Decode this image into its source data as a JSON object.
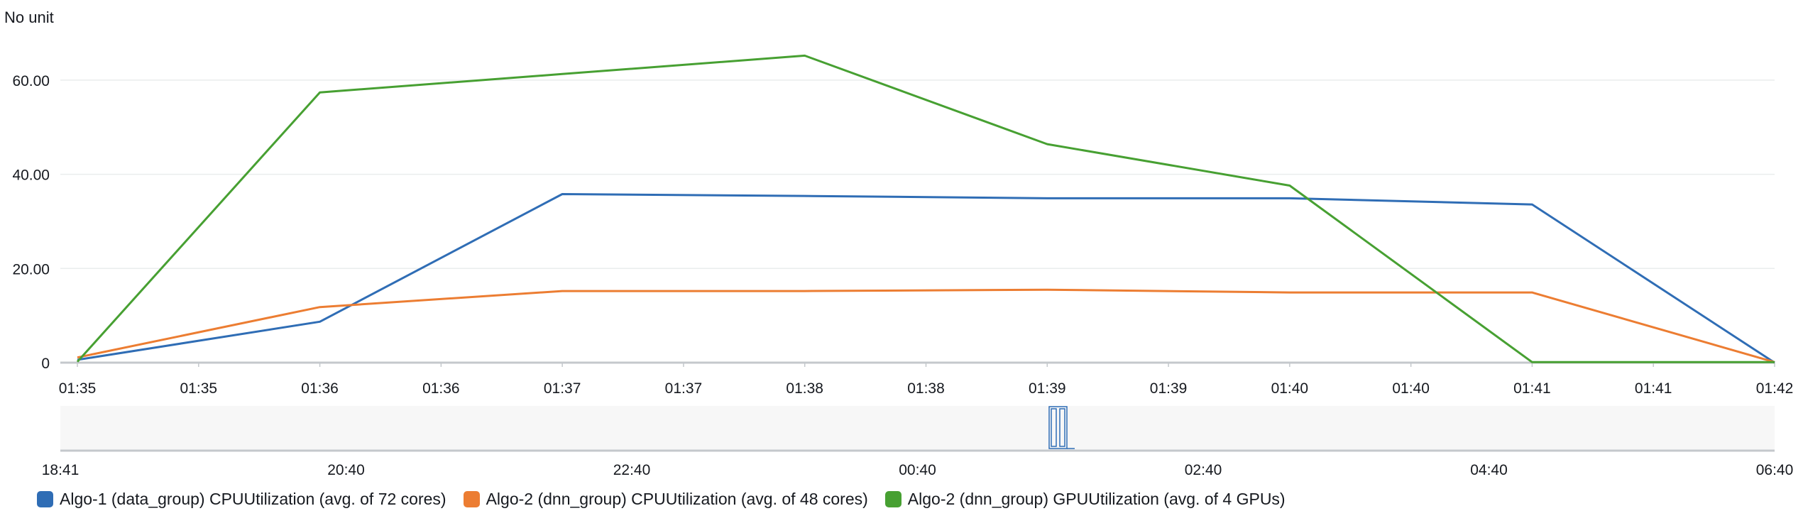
{
  "chart_data": {
    "type": "line",
    "unit_label": "No unit",
    "x": [
      "01:35",
      "01:36",
      "01:37",
      "01:38",
      "01:39",
      "01:40",
      "01:41",
      "01:42"
    ],
    "x_ticks": [
      "01:35",
      "01:35",
      "01:36",
      "01:36",
      "01:37",
      "01:37",
      "01:38",
      "01:38",
      "01:39",
      "01:39",
      "01:40",
      "01:40",
      "01:41",
      "01:41",
      "01:42"
    ],
    "y_ticks": [
      "60.00",
      "40.00",
      "20.00",
      "0"
    ],
    "ylim": [
      0,
      65
    ],
    "grid": true,
    "series": [
      {
        "name": "Algo-1 (data_group) CPUUtilization (avg. of 72 cores)",
        "color": "#2f6db5",
        "values": [
          0.6,
          8.7,
          35.8,
          35.4,
          34.9,
          34.9,
          33.6,
          0
        ]
      },
      {
        "name": "Algo-2 (dnn_group) CPUUtilization (avg. of 48 cores)",
        "color": "#ec7d32",
        "values": [
          1.1,
          11.8,
          15.2,
          15.2,
          15.5,
          14.9,
          14.9,
          0.1
        ]
      },
      {
        "name": "Algo-2 (dnn_group) GPUUtilization (avg. of 4 GPUs)",
        "color": "#47a032",
        "values": [
          0.2,
          57.4,
          61.3,
          65.2,
          46.4,
          37.6,
          0.1,
          0.1
        ]
      }
    ],
    "legend_position": "bottom",
    "navigator": {
      "ticks": [
        "18:41",
        "20:40",
        "22:40",
        "00:40",
        "02:40",
        "04:40",
        "06:40"
      ]
    }
  }
}
